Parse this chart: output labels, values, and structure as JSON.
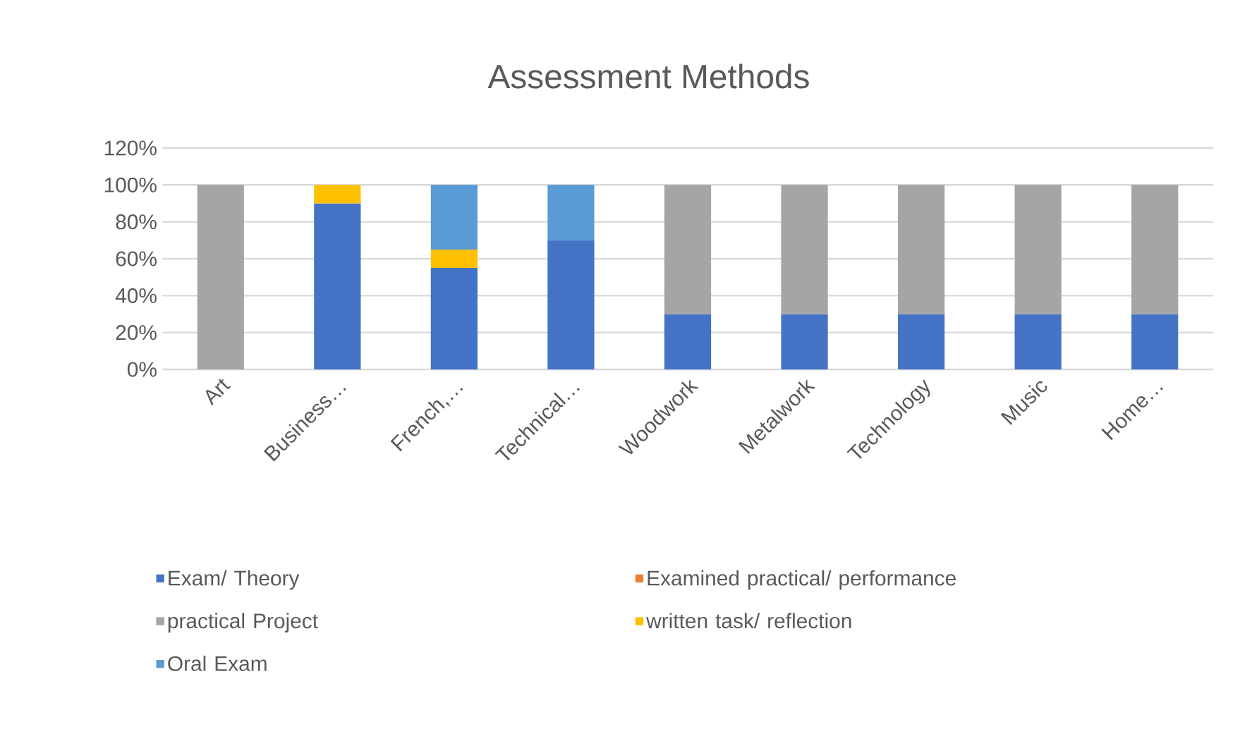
{
  "chart_data": {
    "type": "bar",
    "title": "Assessment Methods",
    "stacked": true,
    "grid": "y",
    "legend": "bottom",
    "categories": [
      "Art",
      "Business…",
      "French,…",
      "Technical…",
      "Woodwork",
      "Metalwork",
      "Technology",
      "Music",
      "Home…"
    ],
    "ylim": [
      0,
      120
    ],
    "yticks": [
      {
        "value": 0,
        "label": "0%"
      },
      {
        "value": 20,
        "label": "20%"
      },
      {
        "value": 40,
        "label": "40%"
      },
      {
        "value": 60,
        "label": "60%"
      },
      {
        "value": 80,
        "label": "80%"
      },
      {
        "value": 100,
        "label": "100%"
      },
      {
        "value": 120,
        "label": "120%"
      }
    ],
    "series": [
      {
        "name": "Exam/ Theory",
        "color": "#4472c4",
        "values": [
          null,
          90,
          55,
          70,
          30,
          30,
          30,
          30,
          30
        ]
      },
      {
        "name": "Examined practical/ performance",
        "color": "#ed7d31",
        "values": [
          null,
          null,
          null,
          null,
          null,
          null,
          null,
          null,
          null
        ]
      },
      {
        "name": "practical Project",
        "color": "#a5a5a5",
        "values": [
          100,
          null,
          null,
          null,
          70,
          70,
          70,
          70,
          70
        ]
      },
      {
        "name": "written task/ reflection",
        "color": "#ffc000",
        "values": [
          null,
          10,
          10,
          null,
          null,
          null,
          null,
          null,
          null
        ]
      },
      {
        "name": "Oral Exam",
        "color": "#5b9bd5",
        "values": [
          null,
          null,
          35,
          30,
          null,
          null,
          null,
          null,
          null
        ]
      }
    ]
  }
}
